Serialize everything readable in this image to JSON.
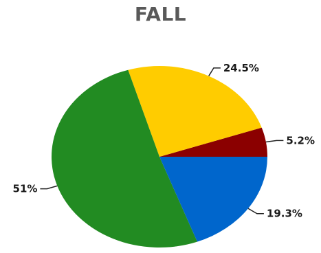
{
  "chart_data": {
    "type": "pie",
    "title": "FALL",
    "start_angle_deg": 0,
    "direction": "counterclockwise",
    "slices": [
      {
        "value": 5.2,
        "label": "5.2%",
        "color": "#8b0000"
      },
      {
        "value": 24.5,
        "label": "24.5%",
        "color": "#ffcc00"
      },
      {
        "value": 51,
        "label": "51%",
        "color": "#228b22"
      },
      {
        "value": 19.3,
        "label": "19.3%",
        "color": "#0066cc"
      }
    ]
  }
}
